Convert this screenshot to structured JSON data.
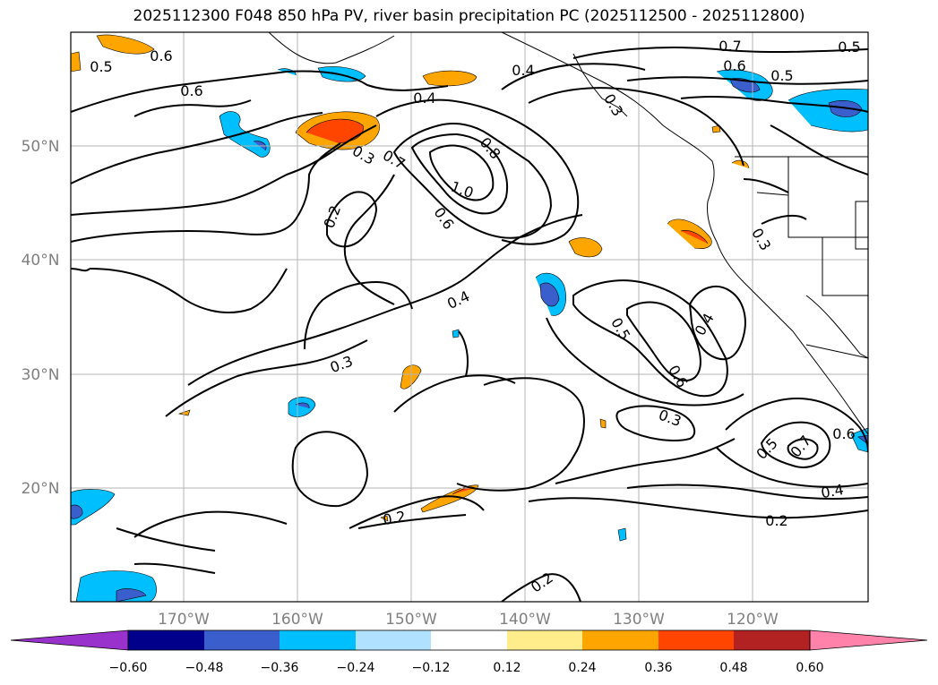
{
  "title": "2025112300 F048 850 hPa PV, river basin precipitation PC (2025112500 - 2025112800)",
  "map": {
    "lat_labels": [
      "50°N",
      "40°N",
      "30°N",
      "20°N"
    ],
    "lon_labels": [
      "170°W",
      "160°W",
      "150°W",
      "140°W",
      "130°W",
      "120°W"
    ],
    "contour_labels": [
      "0.5",
      "0.6",
      "0.6",
      "0.4",
      "0.4",
      "0.3",
      "0.7",
      "0.6",
      "0.5",
      "0.5",
      "0.7",
      "0.8",
      "1.0",
      "0.6",
      "0.2",
      "0.4",
      "0.3",
      "0.3",
      "0.5",
      "0.6",
      "0.4",
      "0.3",
      "0.3",
      "0.2",
      "0.5",
      "0.7",
      "0.6",
      "0.4",
      "0.2",
      "0.2"
    ],
    "grid": true
  },
  "colorbar": {
    "ticks": [
      "−0.60",
      "−0.48",
      "−0.36",
      "−0.24",
      "−0.12",
      "0.12",
      "0.24",
      "0.36",
      "0.48",
      "0.60"
    ],
    "colors": [
      "#9932cc",
      "#00008b",
      "#3a5fcd",
      "#00bfff",
      "#b0e2ff",
      "#ffffff",
      "#ffec8b",
      "#ffa500",
      "#ff4500",
      "#b22222",
      "#ff82ab"
    ]
  }
}
